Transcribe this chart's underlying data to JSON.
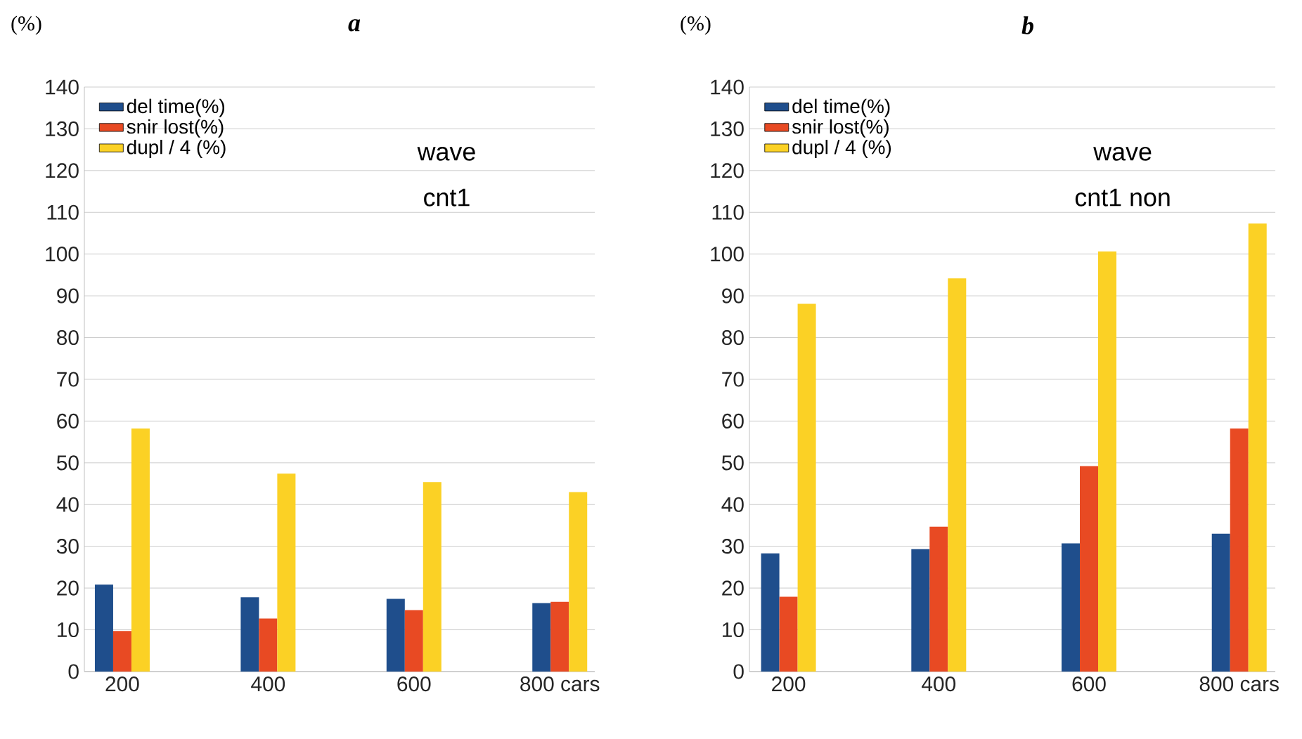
{
  "chart_data": [
    {
      "type": "bar",
      "title": "a",
      "ylabel": "(%)",
      "categories": [
        "200",
        "400",
        "600",
        "800 cars"
      ],
      "series": [
        {
          "name": "del time(%)",
          "color": "#1f4e8c",
          "values": [
            20.8,
            17.8,
            17.4,
            16.4
          ]
        },
        {
          "name": "snir lost(%)",
          "color": "#e84a23",
          "values": [
            9.7,
            12.7,
            14.7,
            16.7
          ]
        },
        {
          "name": "dupl / 4 (%)",
          "color": "#fbd125",
          "values": [
            58.2,
            47.4,
            45.4,
            43.0
          ]
        }
      ],
      "ylim": [
        0,
        140
      ],
      "yticks": [
        0,
        10,
        20,
        30,
        40,
        50,
        60,
        70,
        80,
        90,
        100,
        110,
        120,
        130,
        140
      ],
      "grid": "y",
      "legend": "top left",
      "annotations": [
        "wave",
        "cnt1"
      ]
    },
    {
      "type": "bar",
      "title": "b",
      "ylabel": "(%)",
      "categories": [
        "200",
        "400",
        "600",
        "800 cars"
      ],
      "series": [
        {
          "name": "del time(%)",
          "color": "#1f4e8c",
          "values": [
            28.3,
            29.3,
            30.7,
            33.0
          ]
        },
        {
          "name": "snir lost(%)",
          "color": "#e84a23",
          "values": [
            17.9,
            34.7,
            49.2,
            58.2
          ]
        },
        {
          "name": "dupl / 4 (%)",
          "color": "#fbd125",
          "values": [
            88.1,
            94.2,
            100.6,
            107.3
          ]
        }
      ],
      "ylim": [
        0,
        140
      ],
      "yticks": [
        0,
        10,
        20,
        30,
        40,
        50,
        60,
        70,
        80,
        90,
        100,
        110,
        120,
        130,
        140
      ],
      "grid": "y",
      "legend": "top left",
      "annotations": [
        "wave",
        "cnt1 non"
      ]
    }
  ]
}
